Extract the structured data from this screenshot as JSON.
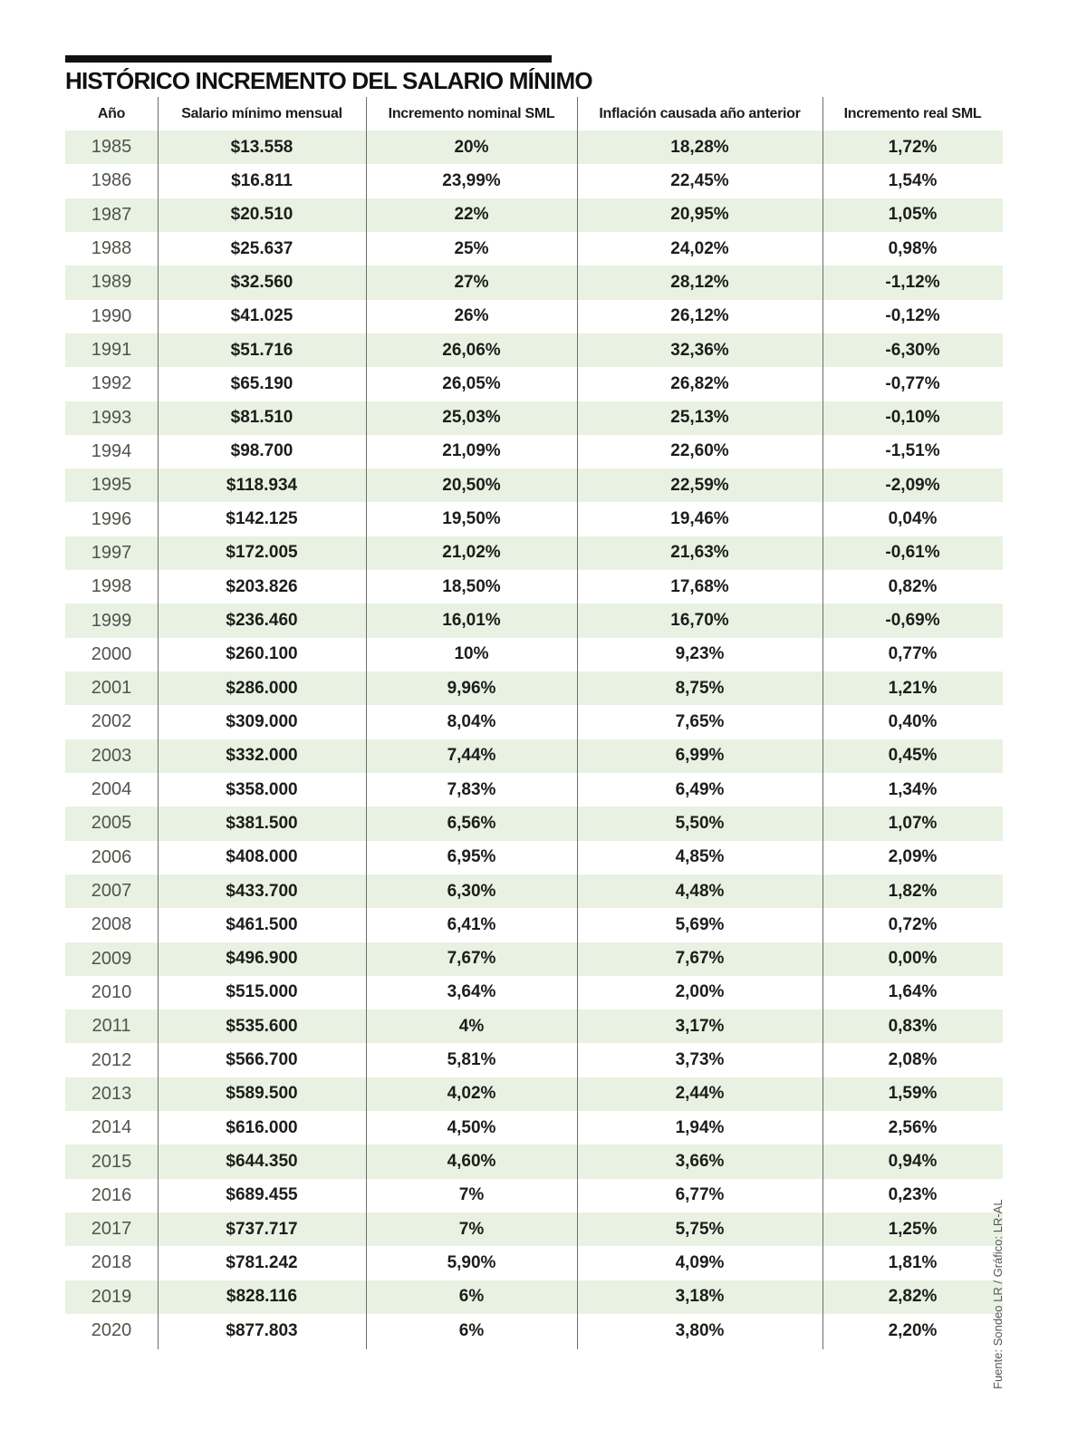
{
  "page": {
    "title": "HISTÓRICO INCREMENTO DEL SALARIO MÍNIMO",
    "source_note": "Fuente: Sondeo LR / Gráfico: LR-AL"
  },
  "colors": {
    "stripe_green": "#e9f2e2",
    "title_black": "#111111",
    "year_text": "#50544c",
    "value_text": "#1d1d1b",
    "divider_gray": "#6e6e6e",
    "source_gray": "#555555"
  },
  "chart_data": {
    "type": "table",
    "title": "HISTÓRICO INCREMENTO DEL SALARIO MÍNIMO",
    "columns": [
      "Año",
      "Salario mínimo mensual",
      "Incremento nominal SML",
      "Inflación causada año anterior",
      "Incremento real SML"
    ],
    "rows": [
      [
        "1985",
        "$13.558",
        "20%",
        "18,28%",
        "1,72%"
      ],
      [
        "1986",
        "$16.811",
        "23,99%",
        "22,45%",
        "1,54%"
      ],
      [
        "1987",
        "$20.510",
        "22%",
        "20,95%",
        "1,05%"
      ],
      [
        "1988",
        "$25.637",
        "25%",
        "24,02%",
        "0,98%"
      ],
      [
        "1989",
        "$32.560",
        "27%",
        "28,12%",
        "-1,12%"
      ],
      [
        "1990",
        "$41.025",
        "26%",
        "26,12%",
        "-0,12%"
      ],
      [
        "1991",
        "$51.716",
        "26,06%",
        "32,36%",
        "-6,30%"
      ],
      [
        "1992",
        "$65.190",
        "26,05%",
        "26,82%",
        "-0,77%"
      ],
      [
        "1993",
        "$81.510",
        "25,03%",
        "25,13%",
        "-0,10%"
      ],
      [
        "1994",
        "$98.700",
        "21,09%",
        "22,60%",
        "-1,51%"
      ],
      [
        "1995",
        "$118.934",
        "20,50%",
        "22,59%",
        "-2,09%"
      ],
      [
        "1996",
        "$142.125",
        "19,50%",
        "19,46%",
        "0,04%"
      ],
      [
        "1997",
        "$172.005",
        "21,02%",
        "21,63%",
        "-0,61%"
      ],
      [
        "1998",
        "$203.826",
        "18,50%",
        "17,68%",
        "0,82%"
      ],
      [
        "1999",
        "$236.460",
        "16,01%",
        "16,70%",
        "-0,69%"
      ],
      [
        "2000",
        "$260.100",
        "10%",
        "9,23%",
        "0,77%"
      ],
      [
        "2001",
        "$286.000",
        "9,96%",
        "8,75%",
        "1,21%"
      ],
      [
        "2002",
        "$309.000",
        "8,04%",
        "7,65%",
        "0,40%"
      ],
      [
        "2003",
        "$332.000",
        "7,44%",
        "6,99%",
        "0,45%"
      ],
      [
        "2004",
        "$358.000",
        "7,83%",
        "6,49%",
        "1,34%"
      ],
      [
        "2005",
        "$381.500",
        "6,56%",
        "5,50%",
        "1,07%"
      ],
      [
        "2006",
        "$408.000",
        "6,95%",
        "4,85%",
        "2,09%"
      ],
      [
        "2007",
        "$433.700",
        "6,30%",
        "4,48%",
        "1,82%"
      ],
      [
        "2008",
        "$461.500",
        "6,41%",
        "5,69%",
        "0,72%"
      ],
      [
        "2009",
        "$496.900",
        "7,67%",
        "7,67%",
        "0,00%"
      ],
      [
        "2010",
        "$515.000",
        "3,64%",
        "2,00%",
        "1,64%"
      ],
      [
        "2011",
        "$535.600",
        "4%",
        "3,17%",
        "0,83%"
      ],
      [
        "2012",
        "$566.700",
        "5,81%",
        "3,73%",
        "2,08%"
      ],
      [
        "2013",
        "$589.500",
        "4,02%",
        "2,44%",
        "1,59%"
      ],
      [
        "2014",
        "$616.000",
        "4,50%",
        "1,94%",
        "2,56%"
      ],
      [
        "2015",
        "$644.350",
        "4,60%",
        "3,66%",
        "0,94%"
      ],
      [
        "2016",
        "$689.455",
        "7%",
        "6,77%",
        "0,23%"
      ],
      [
        "2017",
        "$737.717",
        "7%",
        "5,75%",
        "1,25%"
      ],
      [
        "2018",
        "$781.242",
        "5,90%",
        "4,09%",
        "1,81%"
      ],
      [
        "2019",
        "$828.116",
        "6%",
        "3,18%",
        "2,82%"
      ],
      [
        "2020",
        "$877.803",
        "6%",
        "3,80%",
        "2,20%"
      ]
    ]
  }
}
